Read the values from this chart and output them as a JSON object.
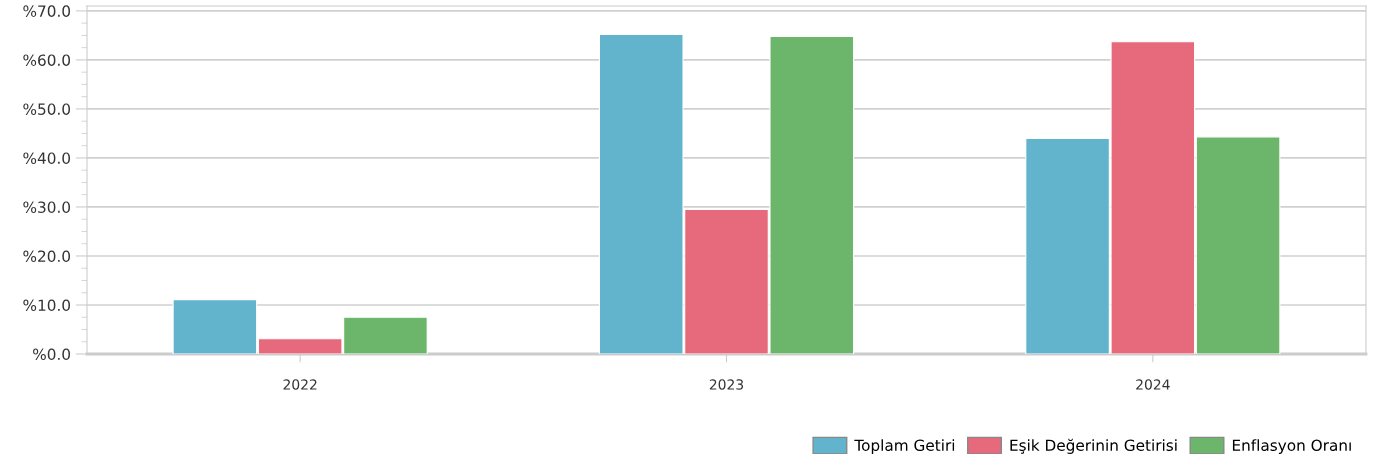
{
  "chart_data": {
    "type": "bar",
    "categories": [
      "2022",
      "2023",
      "2024"
    ],
    "series": [
      {
        "name": "Toplam Getiri",
        "color": "#62b3cc",
        "values": [
          11.1,
          65.2,
          44.0
        ]
      },
      {
        "name": "Eşik Değerinin Getirisi",
        "color": "#e66a7b",
        "values": [
          3.1,
          29.5,
          63.7
        ]
      },
      {
        "name": "Enflasyon Oranı",
        "color": "#6cb66c",
        "values": [
          7.5,
          64.8,
          44.3
        ]
      }
    ],
    "ylim": [
      0,
      71
    ],
    "yticks": [
      {
        "value": 0,
        "label": "%0.0"
      },
      {
        "value": 10,
        "label": "%10.0"
      },
      {
        "value": 20,
        "label": "%20.0"
      },
      {
        "value": 30,
        "label": "%30.0"
      },
      {
        "value": 40,
        "label": "%40.0"
      },
      {
        "value": 50,
        "label": "%50.0"
      },
      {
        "value": 60,
        "label": "%60.0"
      },
      {
        "value": 70,
        "label": "%70.0"
      }
    ],
    "grid": "y",
    "legend": "bottom right"
  }
}
